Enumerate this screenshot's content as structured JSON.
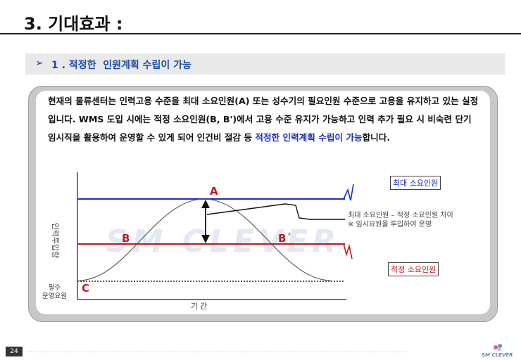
{
  "header": {
    "title": "3. 기대효과 :"
  },
  "section": {
    "arrow": "➢",
    "label": "1 . 적정한  인원계획 수립이 가능"
  },
  "body": {
    "text_before": "현재의 물류센터는 인력고용 수준을 최대 소요인원(A) 또는 성수기의 필요인원 수준으로 고용을 유지하고 있는 실정입니다. WMS 도입 시에는 적정 소요인원(B, B')에서 고용 수준 유지가 가능하고 인력 추가 필요 시 비숙련 단기 임시직을 활용하여 운영할 수 있게 되어 인건비 절감 등 ",
    "highlight": "적정한 인력계획 수립이 가능",
    "text_after": "합니다."
  },
  "diagram": {
    "max_label": "최대 소요인원",
    "min_label": "적정 소요인원",
    "note_line1": "최대 소요인원 – 적정 소요인원 차이",
    "note_line2": "※ 임시요원을 투입하여 운영",
    "point_a": "A",
    "point_b": "B",
    "point_b2": "B´",
    "point_c": "C",
    "y_axis_label": "인력투입량",
    "x_axis_label": "기간",
    "essential_line1": "필수",
    "essential_line2": "운영요원",
    "watermark": "SM CLEVER",
    "colors": {
      "max": "#1a2fb8",
      "min": "#c0181e",
      "accent": "#1a4aa8"
    }
  },
  "footer": {
    "page_number": "24",
    "brand": "SM CLEVER"
  }
}
